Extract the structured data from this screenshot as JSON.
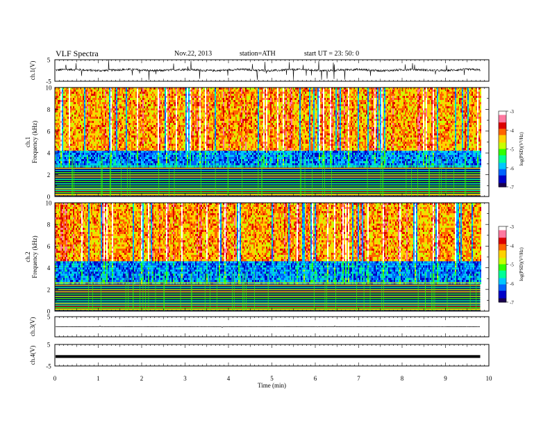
{
  "header": {
    "title": "VLF  Spectra",
    "date": "Nov.22, 2013",
    "station": "station=ATH",
    "start": "start  UT  =   23: 50: 0"
  },
  "colors": {
    "ink": "#000000",
    "spectrogram_scale": [
      "#1a0050",
      "#0000c8",
      "#0064ff",
      "#00c8ff",
      "#00ff96",
      "#32ff00",
      "#c8ff00",
      "#ffd200",
      "#ff6400",
      "#dc0000",
      "#ff78a0",
      "#ffffff"
    ]
  },
  "chart_data": [
    {
      "type": "line",
      "panel": "ch1-waveform",
      "ylabel": "ch.1(V)",
      "ylim": [
        -5,
        5
      ],
      "yticks": [
        "5",
        "-5"
      ],
      "xlim": [
        0,
        10
      ],
      "baseline": 0.2,
      "description_values": {
        "typical_amplitude": 0.6,
        "spike_amplitude": 4.5
      }
    },
    {
      "type": "heatmap",
      "panel": "ch1-spectrogram",
      "ylabel": "ch.1\nFrequency  (kHz)",
      "ylim": [
        0,
        10
      ],
      "yticks": [
        "0",
        "2",
        "4",
        "6",
        "8",
        "10"
      ],
      "xlim": [
        0,
        10
      ],
      "data_end_min": 9.8,
      "noise_floor_khz": 4.2,
      "low_band_khz": 2.8,
      "colorbar": {
        "label": "log(PSD)(V²/Hz)",
        "ticks": [
          "-3",
          "-4",
          "-5",
          "-6",
          "-7"
        ],
        "range": [
          -7,
          -3
        ]
      }
    },
    {
      "type": "heatmap",
      "panel": "ch2-spectrogram",
      "ylabel": "ch.2\nFrequency  (kHz)",
      "ylim": [
        0,
        10
      ],
      "yticks": [
        "0",
        "2",
        "4",
        "6",
        "8",
        "10"
      ],
      "xlim": [
        0,
        10
      ],
      "data_end_min": 9.8,
      "noise_floor_khz": 4.6,
      "low_band_khz": 2.6,
      "colorbar": {
        "label": "log(PSD)(V²/Hz)",
        "ticks": [
          "-3",
          "-4",
          "-5",
          "-6",
          "-7"
        ],
        "range": [
          -7,
          -3
        ]
      }
    },
    {
      "type": "line",
      "panel": "ch3-waveform",
      "ylabel": "ch.3(V)",
      "ylim": [
        -5,
        5
      ],
      "yticks": [
        "5"
      ],
      "xlim": [
        0,
        10
      ],
      "baseline": 0
    },
    {
      "type": "line",
      "panel": "ch4-waveform",
      "ylabel": "ch.4(V)",
      "ylim": [
        -5,
        5
      ],
      "yticks": [
        "5",
        "-5"
      ],
      "xlim": [
        0,
        10
      ],
      "baseline": -0.6
    }
  ],
  "xaxis": {
    "label": "Time  (min)",
    "ticks": [
      "0",
      "1",
      "2",
      "3",
      "4",
      "5",
      "6",
      "7",
      "8",
      "9",
      "10"
    ]
  }
}
